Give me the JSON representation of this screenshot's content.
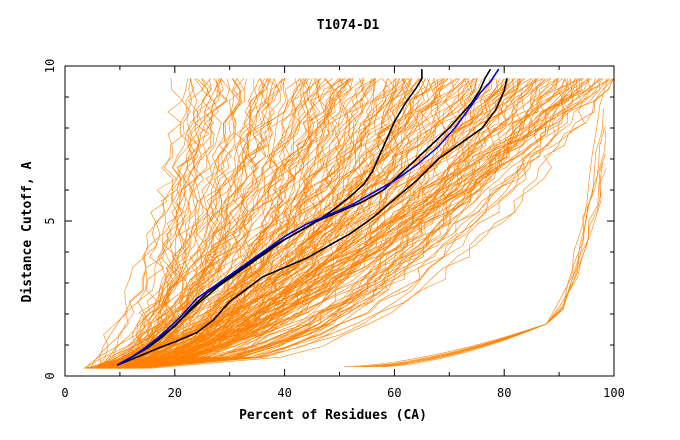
{
  "chart_data": {
    "type": "line",
    "title": "T1074-D1",
    "xlabel": "Percent of Residues (CA)",
    "ylabel": "Distance Cutoff, A",
    "xlim": [
      0,
      100
    ],
    "ylim": [
      0,
      10
    ],
    "xticks": [
      "0",
      "20",
      "40",
      "60",
      "80",
      "100"
    ],
    "yticks": [
      "0",
      "5",
      "10"
    ],
    "colors": {
      "orange": "#ff8000",
      "black": "#000000",
      "blue": "#0000ff"
    },
    "series": [
      {
        "color": "black",
        "x": [
          9.5,
          12,
          15,
          18,
          21,
          24,
          28,
          32,
          36,
          40,
          44,
          48,
          52,
          54.5,
          56,
          57,
          58.5,
          60,
          62,
          64,
          65,
          65
        ],
        "y": [
          0.35,
          0.6,
          0.9,
          1.3,
          1.8,
          2.3,
          2.9,
          3.4,
          3.9,
          4.4,
          4.8,
          5.25,
          5.8,
          6.2,
          6.6,
          7.0,
          7.6,
          8.2,
          8.8,
          9.3,
          9.6,
          9.9
        ]
      },
      {
        "color": "black",
        "x": [
          10,
          13,
          16,
          20,
          23,
          26,
          30,
          34,
          38,
          42,
          46,
          50,
          54,
          58,
          61,
          64,
          67,
          70,
          72.5,
          74,
          75.5,
          76.5,
          77.5
        ],
        "y": [
          0.4,
          0.7,
          1.1,
          1.6,
          2.2,
          2.7,
          3.2,
          3.7,
          4.2,
          4.6,
          5.0,
          5.3,
          5.6,
          6.0,
          6.5,
          7.0,
          7.5,
          8.0,
          8.5,
          8.8,
          9.2,
          9.6,
          9.9
        ]
      },
      {
        "color": "black",
        "x": [
          9.5,
          13,
          17,
          20,
          24,
          27,
          30,
          33,
          36,
          40,
          44,
          48,
          52,
          56,
          60,
          64,
          68,
          72,
          76,
          78.5,
          80,
          80.5
        ],
        "y": [
          0.35,
          0.6,
          0.9,
          1.1,
          1.4,
          1.8,
          2.4,
          2.8,
          3.2,
          3.5,
          3.8,
          4.2,
          4.6,
          5.1,
          5.7,
          6.3,
          7.0,
          7.5,
          8.0,
          8.6,
          9.2,
          9.6
        ]
      },
      {
        "color": "blue",
        "x": [
          9.5,
          12,
          15,
          18,
          21,
          24,
          28,
          32,
          36,
          40,
          44,
          48,
          52,
          56,
          60,
          64,
          68,
          71,
          73.5,
          75.5,
          77.5,
          79
        ],
        "y": [
          0.35,
          0.6,
          0.95,
          1.4,
          1.9,
          2.5,
          3.0,
          3.5,
          4.0,
          4.5,
          4.9,
          5.2,
          5.5,
          5.9,
          6.3,
          6.8,
          7.4,
          8.0,
          8.6,
          9.1,
          9.5,
          9.9
        ]
      }
    ],
    "orange_band": {
      "description_free_count": 220,
      "x_at_bottom_range": [
        4,
        14
      ],
      "x_at_top_range": [
        22,
        100
      ],
      "y_range": [
        0.25,
        9.6
      ]
    },
    "orange_outliers": {
      "x_start_range": [
        50,
        58
      ],
      "y_start": 0.3,
      "x_end_range": [
        97,
        100.5
      ],
      "y_end_range": [
        5.6,
        9.6
      ]
    }
  }
}
